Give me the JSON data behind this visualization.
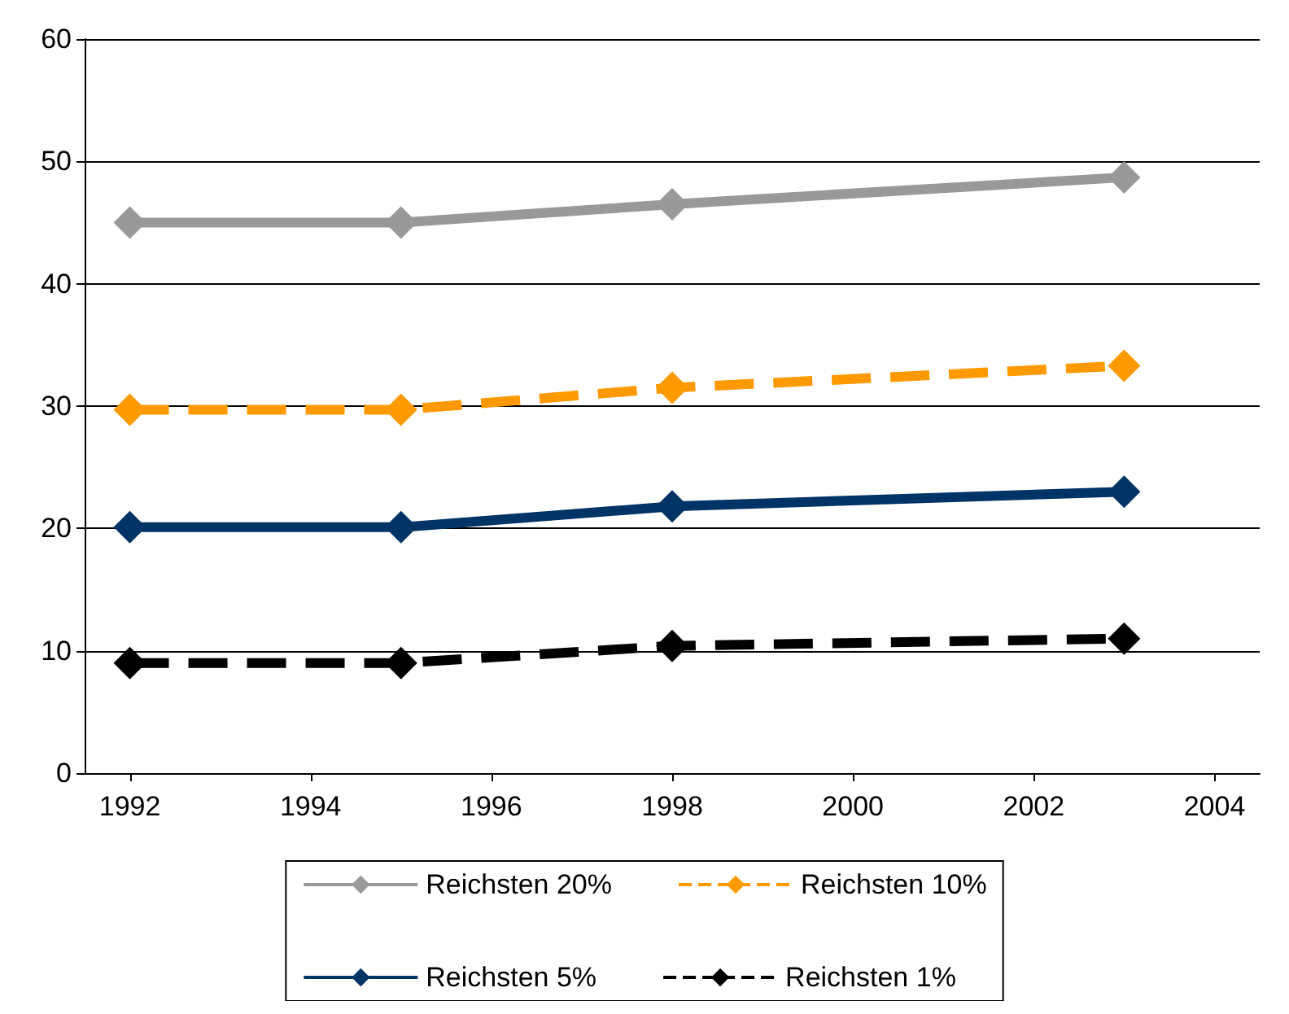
{
  "chart_data": {
    "type": "line",
    "x": [
      1992,
      1995,
      1998,
      2003
    ],
    "series": [
      {
        "name": "Reichsten 20%",
        "color": "#999999",
        "values": [
          45,
          45,
          46.5,
          48.7
        ],
        "marker": "diamond",
        "line_style": "solid"
      },
      {
        "name": "Reichsten 10%",
        "color": "#ff9900",
        "values": [
          29.7,
          29.7,
          31.5,
          33.3
        ],
        "marker": "diamond",
        "line_style": "dashed"
      },
      {
        "name": "Reichsten 5%",
        "color": "#003366",
        "values": [
          20.1,
          20.1,
          21.8,
          23
        ],
        "marker": "diamond",
        "line_style": "solid"
      },
      {
        "name": "Reichsten 1%",
        "color": "#000000",
        "values": [
          9,
          9,
          10.4,
          11
        ],
        "marker": "diamond",
        "line_style": "dashed"
      }
    ],
    "xlim": [
      1991.5,
      2004.5
    ],
    "xticks": [
      1992,
      1994,
      1996,
      1998,
      2000,
      2002,
      2004
    ],
    "ylim": [
      0,
      60
    ],
    "yticks": [
      0,
      10,
      20,
      30,
      40,
      50,
      60
    ],
    "grid": "y",
    "legend": "bottom"
  }
}
